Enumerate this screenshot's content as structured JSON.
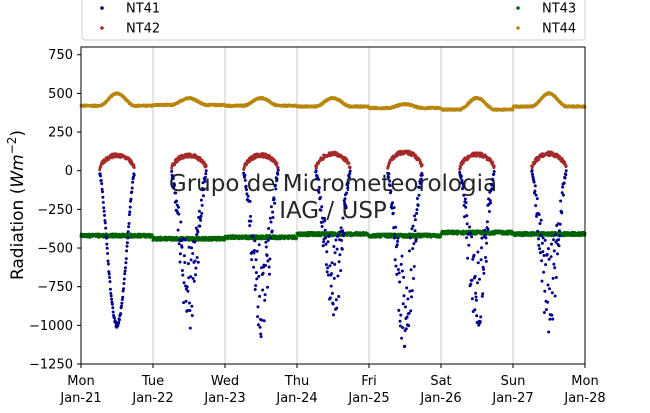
{
  "chart_data": {
    "type": "scatter",
    "title": "",
    "ylabel": "Radiation (",
    "ylabel_unit": "Wm",
    "ylabel_exp": "−2",
    "ylabel_close": ")",
    "watermark": [
      "Grupo de Micrometeorologia",
      "IAG / USP"
    ],
    "xlim": [
      "2000-01-21",
      "2000-01-28"
    ],
    "ylim": [
      -1250,
      800
    ],
    "yticks": [
      -1250,
      -1000,
      -750,
      -500,
      -250,
      0,
      250,
      500,
      750
    ],
    "ytick_labels": [
      "−1250",
      "−1000",
      "−750",
      "−500",
      "−250",
      "0",
      "250",
      "500",
      "750"
    ],
    "xtick_labels": [
      [
        "Mon",
        "Jan-21"
      ],
      [
        "Tue",
        "Jan-22"
      ],
      [
        "Wed",
        "Jan-23"
      ],
      [
        "Thu",
        "Jan-24"
      ],
      [
        "Fri",
        "Jan-25"
      ],
      [
        "Sat",
        "Jan-26"
      ],
      [
        "Sun",
        "Jan-27"
      ],
      [
        "Mon",
        "Jan-28"
      ]
    ],
    "grid": "vertical",
    "legend_position": "top",
    "series": [
      {
        "name": "NT41",
        "color": "#00008b",
        "marker": "dot"
      },
      {
        "name": "NT42",
        "color": "#a52a2a",
        "marker": "dot"
      },
      {
        "name": "NT43",
        "color": "#006400",
        "marker": "dot"
      },
      {
        "name": "NT44",
        "color": "#b8860b",
        "marker": "dot"
      }
    ],
    "day_profiles": {
      "NT44_daytime_peak": [
        500,
        470,
        470,
        470,
        430,
        470,
        500
      ],
      "NT44_night_level": [
        420,
        425,
        420,
        415,
        405,
        395,
        415
      ],
      "NT43_level": [
        -420,
        -440,
        -430,
        -410,
        -420,
        -400,
        -410
      ],
      "NT41_min": [
        -1000,
        -1050,
        -1080,
        -1020,
        -1170,
        -1080,
        -1060
      ],
      "NT42_peak": [
        100,
        100,
        100,
        110,
        120,
        105,
        110
      ]
    }
  }
}
